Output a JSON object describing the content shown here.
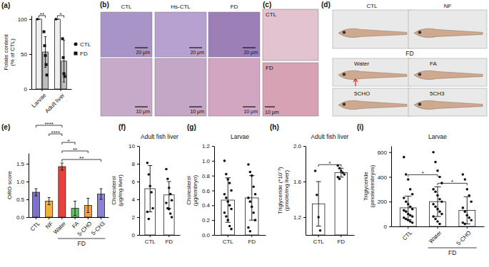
{
  "chart_data": [
    {
      "type": "bar",
      "panel_label": "(a)",
      "ylabel": [
        "Folate content",
        "(% of CTL)"
      ],
      "categories": [
        "Larvae",
        "Adult liver"
      ],
      "series": [
        {
          "name": "CTL",
          "color": "#f0f0f0",
          "marker": "circle",
          "values": [
            100,
            100
          ],
          "errors": [
            0,
            0
          ],
          "points": [
            [
              100
            ],
            [
              100
            ]
          ]
        },
        {
          "name": "FD",
          "color": "#bdbdbd",
          "marker": "square",
          "values": [
            53,
            40
          ],
          "errors": [
            22,
            30
          ],
          "points": [
            [
              82,
              62,
              48,
              35,
              20
            ],
            [
              72,
              45,
              22,
              18
            ]
          ]
        }
      ],
      "ylim": [
        0,
        105
      ],
      "yticks": [
        0,
        50,
        100
      ],
      "legend": "right",
      "annotations": [
        {
          "text": "**",
          "category": "Larvae"
        },
        {
          "text": "*",
          "category": "Adult liver"
        }
      ]
    },
    {
      "type": "bar",
      "panel_label": "(e)",
      "ylabel": [
        "ORO score"
      ],
      "categories": [
        "CTL",
        "NF",
        "Water",
        "FA",
        "5-CHO",
        "5-CH3"
      ],
      "values": [
        0.7,
        0.45,
        1.42,
        0.25,
        0.33,
        0.65
      ],
      "errors": [
        0.1,
        0.1,
        0.1,
        0.2,
        0.2,
        0.15
      ],
      "colors": [
        "#7b72c9",
        "#f2b040",
        "#e8413c",
        "#66c26a",
        "#f4a142",
        "#8b83d6"
      ],
      "ylim": [
        0,
        1.8
      ],
      "yticks": [
        {
          "value": 0,
          "label": "0.0"
        },
        0.5,
        {
          "value": 1,
          "label": "1.0"
        },
        1.5
      ],
      "annotations": [
        {
          "text": "****",
          "between": [
            "CTL",
            "Water"
          ]
        },
        {
          "text": "****",
          "between": [
            "NF",
            "Water"
          ]
        },
        {
          "text": "*",
          "between": [
            "Water",
            "FA"
          ]
        },
        {
          "text": "**",
          "between": [
            "Water",
            "5-CHO"
          ]
        },
        {
          "text": "**",
          "between": [
            "Water",
            "5-CH3"
          ]
        }
      ],
      "group_labels": [
        {
          "text": "FD",
          "categories": [
            "Water",
            "5-CH3"
          ]
        }
      ]
    },
    {
      "type": "bar",
      "panel_label": "(f)",
      "title": "Adult fish liver",
      "ylabel": [
        "Cholesterol",
        "(μg/mg liver)"
      ],
      "categories": [
        "CTL",
        "FD"
      ],
      "values": [
        5.2,
        4.5
      ],
      "errors": [
        2.6,
        1.5
      ],
      "color": "#ffffff",
      "points": [
        [
          8.1,
          6.8,
          5.5,
          4.8,
          3.0,
          2.6,
          1.8
        ],
        [
          7.4,
          6.3,
          5.3,
          4.6,
          3.9,
          3.6,
          3.0,
          2.9,
          2.4,
          2.0
        ]
      ],
      "ylim": [
        0,
        10
      ],
      "yticks": [
        0,
        2,
        4,
        6,
        8,
        10
      ]
    },
    {
      "type": "bar",
      "panel_label": "(g)",
      "title": "Larvae",
      "ylabel": [
        "Cholesterol",
        "(μg/embryo)"
      ],
      "categories": [
        "CTL",
        "FD"
      ],
      "values": [
        0.47,
        0.5
      ],
      "errors": [
        0.3,
        0.3
      ],
      "color": "#ffffff",
      "points": [
        [
          1.0,
          0.82,
          0.75,
          0.7,
          0.6,
          0.55,
          0.5,
          0.45,
          0.4,
          0.35,
          0.3,
          0.25,
          0.2,
          0.12,
          0.08
        ],
        [
          0.95,
          0.85,
          0.8,
          0.65,
          0.55,
          0.5,
          0.45,
          0.38,
          0.3,
          0.2,
          0.1,
          0.05
        ]
      ],
      "ylim": [
        0,
        1.2
      ],
      "yticks": [
        {
          "value": 0,
          "label": "0.0"
        },
        0.2,
        0.4,
        0.6,
        0.8,
        {
          "value": 1,
          "label": "1.0"
        },
        1.2
      ]
    },
    {
      "type": "bar",
      "panel_label": "(h)",
      "title": "Adult fish liver",
      "ylabel": [
        "Triglyceride (*10⁻³)",
        "(pmole/mg liver)"
      ],
      "categories": [
        "CTL",
        "FD"
      ],
      "values": [
        1.35,
        1.7
      ],
      "errors": [
        0.25,
        0.05
      ],
      "color": "#ffffff",
      "points": [
        [
          1.72,
          1.45,
          1.2,
          1.05
        ],
        [
          1.78,
          1.75,
          1.72,
          1.7,
          1.68,
          1.65,
          1.63
        ]
      ],
      "ylim": [
        1.0,
        2.0
      ],
      "yticks": [
        1.2,
        1.6,
        {
          "value": 2,
          "label": "2.0"
        }
      ],
      "annotations": [
        {
          "text": "*",
          "between": [
            "CTL",
            "FD"
          ]
        }
      ]
    },
    {
      "type": "bar",
      "panel_label": "(i)",
      "title": "Larvae",
      "ylabel": [
        "Triglyceride",
        "(pmole/embryos)"
      ],
      "categories": [
        "CTL",
        "Water",
        "5-CHO"
      ],
      "values": [
        150,
        200,
        130
      ],
      "errors": [
        95,
        120,
        110
      ],
      "color": "#ffffff",
      "points": [
        [
          560,
          420,
          380,
          300,
          260,
          230,
          200,
          180,
          160,
          140,
          130,
          120,
          100,
          90,
          80,
          70,
          60,
          50,
          40,
          30
        ],
        [
          600,
          520,
          450,
          400,
          350,
          300,
          280,
          250,
          220,
          200,
          180,
          160,
          140,
          120,
          100,
          80,
          60,
          40,
          20
        ],
        [
          420,
          380,
          300,
          250,
          200,
          150,
          120,
          90,
          70,
          50,
          30,
          20
        ]
      ],
      "ylim": [
        0,
        650
      ],
      "yticks": [
        0,
        200,
        400,
        600
      ],
      "annotations": [
        {
          "text": "*",
          "between": [
            "CTL",
            "Water"
          ]
        },
        {
          "text": "*",
          "between": [
            "Water",
            "5-CHO"
          ]
        }
      ],
      "group_labels": [
        {
          "text": "FD",
          "categories": [
            "Water",
            "5-CHO"
          ]
        }
      ]
    }
  ],
  "images": [
    {
      "panel_label": "(b)",
      "columns": [
        "CTL",
        "Hs-CTL",
        "FD"
      ],
      "scale_bars": [
        [
          "20 μm",
          "20 μm",
          "20 μm"
        ],
        [
          "10 μm",
          "10 μm",
          "10 μm"
        ]
      ]
    },
    {
      "panel_label": "(c)",
      "rows": [
        "CTL",
        "FD"
      ],
      "scale_bars": [
        "10 μm"
      ]
    },
    {
      "panel_label": "(d)",
      "rows": [
        [
          "CTL",
          "NF"
        ],
        [
          "Water",
          "FA"
        ],
        [
          "5CHO",
          "5CH3"
        ]
      ],
      "group_label": "FD"
    }
  ]
}
